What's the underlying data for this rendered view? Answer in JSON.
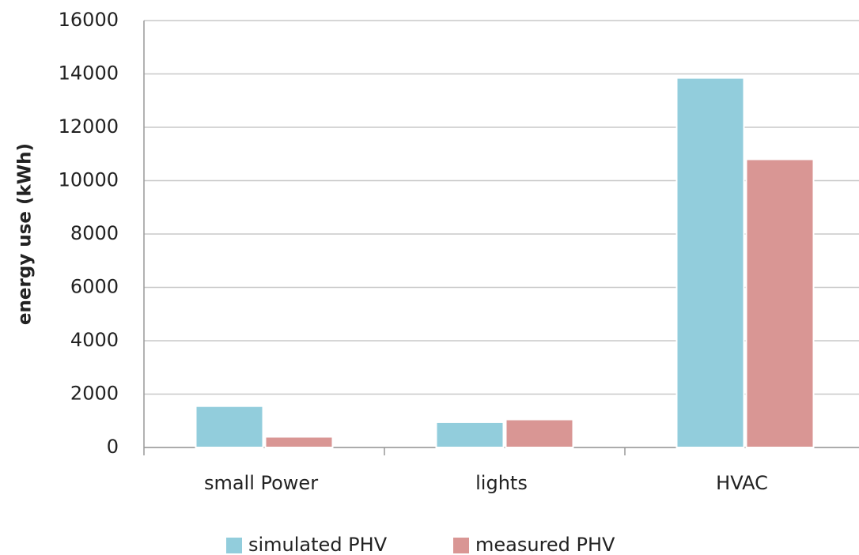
{
  "chart_data": {
    "type": "bar",
    "y_label": "energy use (kWh)",
    "categories": [
      "small Power",
      "lights",
      "HVAC"
    ],
    "series": [
      {
        "name": "simulated PHV",
        "color": "#92cddc",
        "values": [
          1550,
          950,
          13850
        ]
      },
      {
        "name": "measured PHV",
        "color": "#d99694",
        "values": [
          400,
          1050,
          10800
        ]
      }
    ],
    "ylim": [
      0,
      16000
    ],
    "yticks": [
      0,
      2000,
      4000,
      6000,
      8000,
      10000,
      12000,
      14000,
      16000
    ],
    "grid": true,
    "legend": "bottom"
  }
}
